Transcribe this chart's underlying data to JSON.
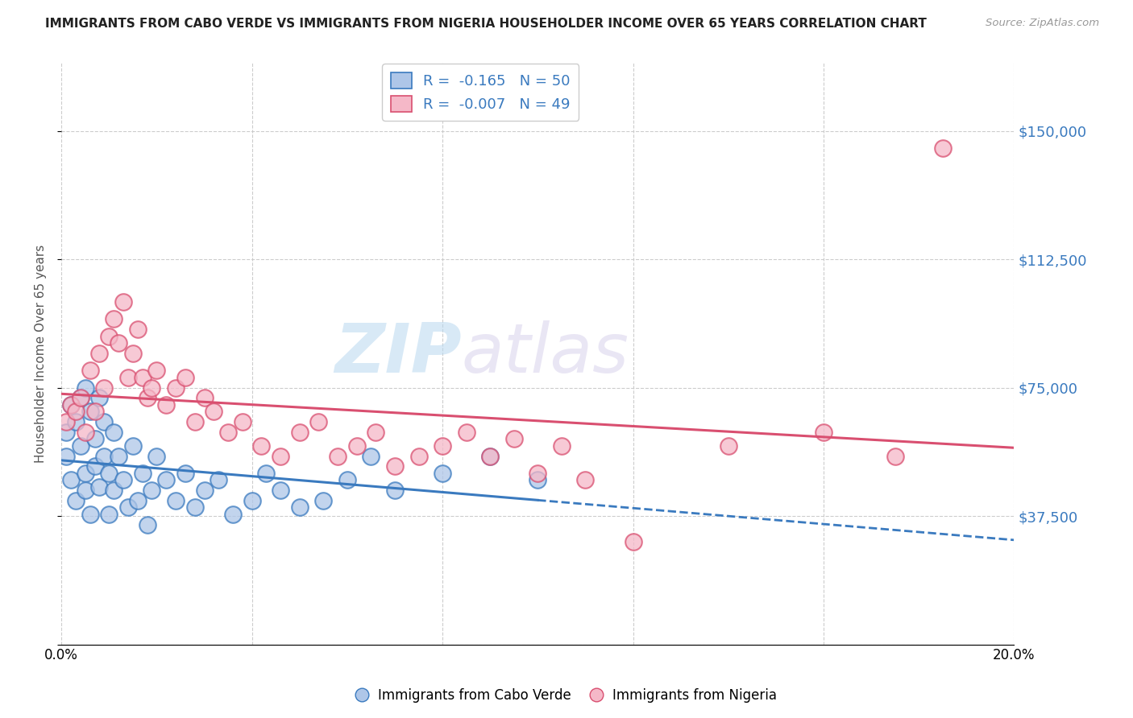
{
  "title": "IMMIGRANTS FROM CABO VERDE VS IMMIGRANTS FROM NIGERIA HOUSEHOLDER INCOME OVER 65 YEARS CORRELATION CHART",
  "source": "Source: ZipAtlas.com",
  "ylabel": "Householder Income Over 65 years",
  "xlim": [
    0.0,
    0.2
  ],
  "ylim": [
    0,
    170000
  ],
  "yticks": [
    0,
    37500,
    75000,
    112500,
    150000
  ],
  "ytick_labels": [
    "",
    "$37,500",
    "$75,000",
    "$112,500",
    "$150,000"
  ],
  "xticks": [
    0.0,
    0.04,
    0.08,
    0.12,
    0.16,
    0.2
  ],
  "xtick_labels": [
    "0.0%",
    "",
    "",
    "",
    "",
    "20.0%"
  ],
  "cabo_verde_R": -0.165,
  "cabo_verde_N": 50,
  "nigeria_R": -0.007,
  "nigeria_N": 49,
  "cabo_verde_color": "#aec6e8",
  "nigeria_color": "#f5b8c8",
  "cabo_verde_line_color": "#3a7abf",
  "nigeria_line_color": "#d94f70",
  "watermark_zip": "ZIP",
  "watermark_atlas": "atlas",
  "cabo_verde_x": [
    0.001,
    0.001,
    0.002,
    0.002,
    0.003,
    0.003,
    0.004,
    0.004,
    0.005,
    0.005,
    0.005,
    0.006,
    0.006,
    0.007,
    0.007,
    0.008,
    0.008,
    0.009,
    0.009,
    0.01,
    0.01,
    0.011,
    0.011,
    0.012,
    0.013,
    0.014,
    0.015,
    0.016,
    0.017,
    0.018,
    0.019,
    0.02,
    0.022,
    0.024,
    0.026,
    0.028,
    0.03,
    0.033,
    0.036,
    0.04,
    0.043,
    0.046,
    0.05,
    0.055,
    0.06,
    0.065,
    0.07,
    0.08,
    0.09,
    0.1
  ],
  "cabo_verde_y": [
    62000,
    55000,
    70000,
    48000,
    65000,
    42000,
    72000,
    58000,
    75000,
    50000,
    45000,
    68000,
    38000,
    60000,
    52000,
    72000,
    46000,
    65000,
    55000,
    50000,
    38000,
    62000,
    45000,
    55000,
    48000,
    40000,
    58000,
    42000,
    50000,
    35000,
    45000,
    55000,
    48000,
    42000,
    50000,
    40000,
    45000,
    48000,
    38000,
    42000,
    50000,
    45000,
    40000,
    42000,
    48000,
    55000,
    45000,
    50000,
    55000,
    48000
  ],
  "nigeria_x": [
    0.001,
    0.002,
    0.003,
    0.004,
    0.005,
    0.006,
    0.007,
    0.008,
    0.009,
    0.01,
    0.011,
    0.012,
    0.013,
    0.014,
    0.015,
    0.016,
    0.017,
    0.018,
    0.019,
    0.02,
    0.022,
    0.024,
    0.026,
    0.028,
    0.03,
    0.032,
    0.035,
    0.038,
    0.042,
    0.046,
    0.05,
    0.054,
    0.058,
    0.062,
    0.066,
    0.07,
    0.075,
    0.08,
    0.085,
    0.09,
    0.095,
    0.1,
    0.105,
    0.11,
    0.12,
    0.14,
    0.16,
    0.175,
    0.185
  ],
  "nigeria_y": [
    65000,
    70000,
    68000,
    72000,
    62000,
    80000,
    68000,
    85000,
    75000,
    90000,
    95000,
    88000,
    100000,
    78000,
    85000,
    92000,
    78000,
    72000,
    75000,
    80000,
    70000,
    75000,
    78000,
    65000,
    72000,
    68000,
    62000,
    65000,
    58000,
    55000,
    62000,
    65000,
    55000,
    58000,
    62000,
    52000,
    55000,
    58000,
    62000,
    55000,
    60000,
    50000,
    58000,
    48000,
    30000,
    58000,
    62000,
    55000,
    145000
  ]
}
